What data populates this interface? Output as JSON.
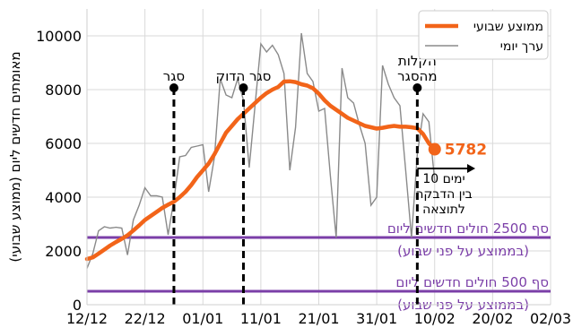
{
  "chart_data": {
    "type": "line",
    "ylabel": "מאומתים חדשים ליום (ממוצע שבועי)",
    "xlabel": "",
    "ylim": [
      0,
      11000
    ],
    "xlim": [
      "2020-12-12",
      "2021-03-02"
    ],
    "y_ticks": [
      "0",
      "2000",
      "4000",
      "6000",
      "8000",
      "10000"
    ],
    "x_ticks": [
      "2020-12-12",
      "2020-12-22",
      "2021-01-01",
      "2021-01-11",
      "2021-01-21",
      "2021-01-31",
      "2021-02-10",
      "2021-02-20",
      "2021-03-02"
    ],
    "x_tick_labels": [
      "12/12",
      "22/12",
      "01/01",
      "11/01",
      "21/01",
      "31/01",
      "10/02",
      "20/02",
      "02/03"
    ],
    "grid": true,
    "legend": {
      "placement": "top-right",
      "entries": [
        {
          "label": "ממוצע שבועי",
          "color": "#f26419",
          "style": "thick"
        },
        {
          "label": "ערך יומי",
          "color": "#8a8a8a",
          "style": "thin"
        }
      ]
    },
    "series": [
      {
        "name": "ממוצע שבועי",
        "color": "#f26419",
        "points": [
          [
            "2020-12-12",
            1700
          ],
          [
            "2020-12-13",
            1760
          ],
          [
            "2020-12-14",
            1900
          ],
          [
            "2020-12-15",
            2050
          ],
          [
            "2020-12-16",
            2200
          ],
          [
            "2020-12-17",
            2330
          ],
          [
            "2020-12-18",
            2450
          ],
          [
            "2020-12-19",
            2580
          ],
          [
            "2020-12-20",
            2760
          ],
          [
            "2020-12-21",
            2950
          ],
          [
            "2020-12-22",
            3150
          ],
          [
            "2020-12-23",
            3300
          ],
          [
            "2020-12-24",
            3450
          ],
          [
            "2020-12-25",
            3600
          ],
          [
            "2020-12-26",
            3720
          ],
          [
            "2020-12-27",
            3830
          ],
          [
            "2020-12-28",
            4000
          ],
          [
            "2020-12-29",
            4200
          ],
          [
            "2020-12-30",
            4450
          ],
          [
            "2020-12-31",
            4750
          ],
          [
            "2021-01-01",
            5000
          ],
          [
            "2021-01-02",
            5250
          ],
          [
            "2021-01-03",
            5600
          ],
          [
            "2021-01-04",
            6000
          ],
          [
            "2021-01-05",
            6400
          ],
          [
            "2021-01-06",
            6650
          ],
          [
            "2021-01-07",
            6900
          ],
          [
            "2021-01-08",
            7100
          ],
          [
            "2021-01-09",
            7300
          ],
          [
            "2021-01-10",
            7500
          ],
          [
            "2021-01-11",
            7700
          ],
          [
            "2021-01-12",
            7870
          ],
          [
            "2021-01-13",
            8000
          ],
          [
            "2021-01-14",
            8100
          ],
          [
            "2021-01-15",
            8300
          ],
          [
            "2021-01-16",
            8310
          ],
          [
            "2021-01-17",
            8280
          ],
          [
            "2021-01-18",
            8200
          ],
          [
            "2021-01-19",
            8150
          ],
          [
            "2021-01-20",
            8050
          ],
          [
            "2021-01-21",
            7850
          ],
          [
            "2021-01-22",
            7600
          ],
          [
            "2021-01-23",
            7400
          ],
          [
            "2021-01-24",
            7250
          ],
          [
            "2021-01-25",
            7100
          ],
          [
            "2021-01-26",
            6950
          ],
          [
            "2021-01-27",
            6850
          ],
          [
            "2021-01-28",
            6750
          ],
          [
            "2021-01-29",
            6650
          ],
          [
            "2021-01-30",
            6600
          ],
          [
            "2021-01-31",
            6550
          ],
          [
            "2021-02-01",
            6580
          ],
          [
            "2021-02-02",
            6620
          ],
          [
            "2021-02-03",
            6650
          ],
          [
            "2021-02-04",
            6620
          ],
          [
            "2021-02-05",
            6620
          ],
          [
            "2021-02-06",
            6600
          ],
          [
            "2021-02-07",
            6560
          ],
          [
            "2021-02-08",
            6350
          ],
          [
            "2021-02-09",
            6000
          ],
          [
            "2021-02-10",
            5782
          ]
        ],
        "end_label": "5782"
      },
      {
        "name": "ערך יומי",
        "color": "#8a8a8a",
        "points": [
          [
            "2020-12-12",
            1350
          ],
          [
            "2020-12-13",
            1900
          ],
          [
            "2020-12-14",
            2750
          ],
          [
            "2020-12-15",
            2900
          ],
          [
            "2020-12-16",
            2850
          ],
          [
            "2020-12-17",
            2880
          ],
          [
            "2020-12-18",
            2850
          ],
          [
            "2020-12-19",
            1850
          ],
          [
            "2020-12-20",
            3150
          ],
          [
            "2020-12-21",
            3700
          ],
          [
            "2020-12-22",
            4350
          ],
          [
            "2020-12-23",
            4050
          ],
          [
            "2020-12-24",
            4050
          ],
          [
            "2020-12-25",
            4000
          ],
          [
            "2020-12-26",
            2600
          ],
          [
            "2020-12-27",
            3900
          ],
          [
            "2020-12-28",
            5500
          ],
          [
            "2020-12-29",
            5550
          ],
          [
            "2020-12-30",
            5850
          ],
          [
            "2020-12-31",
            5900
          ],
          [
            "2021-01-01",
            5950
          ],
          [
            "2021-01-02",
            4200
          ],
          [
            "2021-01-03",
            5500
          ],
          [
            "2021-01-04",
            8400
          ],
          [
            "2021-01-05",
            7800
          ],
          [
            "2021-01-06",
            7700
          ],
          [
            "2021-01-07",
            8400
          ],
          [
            "2021-01-08",
            7600
          ],
          [
            "2021-01-09",
            5100
          ],
          [
            "2021-01-10",
            7400
          ],
          [
            "2021-01-11",
            9700
          ],
          [
            "2021-01-12",
            9400
          ],
          [
            "2021-01-13",
            9650
          ],
          [
            "2021-01-14",
            9300
          ],
          [
            "2021-01-15",
            8600
          ],
          [
            "2021-01-16",
            5000
          ],
          [
            "2021-01-17",
            6600
          ],
          [
            "2021-01-18",
            10100
          ],
          [
            "2021-01-19",
            8600
          ],
          [
            "2021-01-20",
            8300
          ],
          [
            "2021-01-21",
            7200
          ],
          [
            "2021-01-22",
            7300
          ],
          [
            "2021-01-23",
            4800
          ],
          [
            "2021-01-24",
            2500
          ],
          [
            "2021-01-25",
            8800
          ],
          [
            "2021-01-26",
            7700
          ],
          [
            "2021-01-27",
            7500
          ],
          [
            "2021-01-28",
            6700
          ],
          [
            "2021-01-29",
            6000
          ],
          [
            "2021-01-30",
            3700
          ],
          [
            "2021-01-31",
            4000
          ],
          [
            "2021-02-01",
            8900
          ],
          [
            "2021-02-02",
            8200
          ],
          [
            "2021-02-03",
            7700
          ],
          [
            "2021-02-04",
            7400
          ],
          [
            "2021-02-05",
            5000
          ],
          [
            "2021-02-06",
            2500
          ],
          [
            "2021-02-07",
            5600
          ],
          [
            "2021-02-08",
            7100
          ],
          [
            "2021-02-09",
            6800
          ],
          [
            "2021-02-10",
            4600
          ]
        ]
      }
    ],
    "thresholds": [
      {
        "y": 2500,
        "color": "#7b3fa8",
        "line1": "סף 2500 חולים חדשים ליום",
        "line2": "(בממוצע על פני שבוע)"
      },
      {
        "y": 500,
        "color": "#7b3fa8",
        "line1": "סף 500 חולים חדשים ליום",
        "line2": "(בממוצע על פני שבוע)"
      }
    ],
    "events": [
      {
        "date": "2020-12-27",
        "label_lines": [
          "סגר"
        ]
      },
      {
        "date": "2021-01-08",
        "label_lines": [
          "סגר הדוק"
        ]
      },
      {
        "date": "2021-02-07",
        "label_lines": [
          "הקלות",
          "מהסגר"
        ]
      }
    ],
    "annotation": {
      "start_date": "2021-02-07",
      "end_date": "2021-02-17",
      "lines": [
        "10 ימים",
        "בין הדבקה",
        "לתוצאה"
      ]
    }
  }
}
